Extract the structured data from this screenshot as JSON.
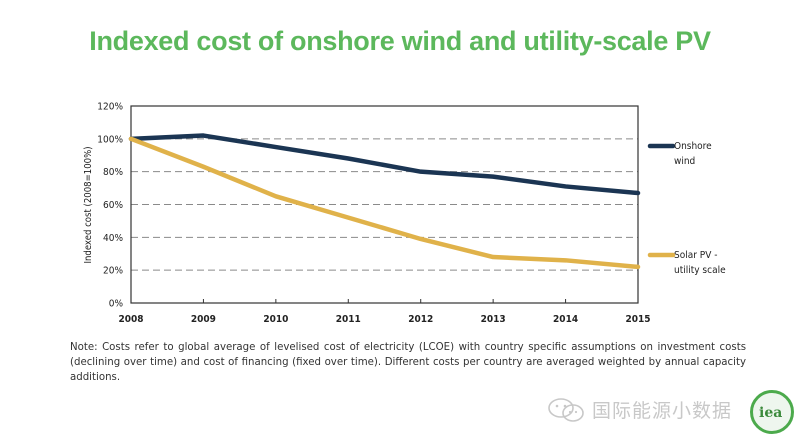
{
  "chart_data": {
    "type": "line",
    "title": "Indexed cost of onshore wind and utility-scale PV",
    "xlabel": "",
    "ylabel": "Indexed cost (2008=100%)",
    "x": [
      2008,
      2009,
      2010,
      2011,
      2012,
      2013,
      2014,
      2015
    ],
    "x_tick_labels": [
      "2008",
      "2009",
      "2010",
      "2011",
      "2012",
      "2013",
      "2014",
      "2015"
    ],
    "ylim": [
      0,
      120
    ],
    "y_ticks": [
      0,
      20,
      40,
      60,
      80,
      100,
      120
    ],
    "y_tick_labels": [
      "0%",
      "20%",
      "40%",
      "60%",
      "80%",
      "100%",
      "120%"
    ],
    "grid": "horizontal dashed",
    "legend_placement": "right",
    "series": [
      {
        "name": "Onshore wind",
        "legend_lines": [
          "Onshore",
          "wind"
        ],
        "color": "#1b3553",
        "values": [
          100,
          102,
          95,
          88,
          80,
          77,
          71,
          67
        ]
      },
      {
        "name": "Solar PV - utility scale",
        "legend_lines": [
          "Solar PV -",
          "utility scale"
        ],
        "color": "#e0b24a",
        "values": [
          100,
          83,
          65,
          52,
          39,
          28,
          26,
          22
        ]
      }
    ]
  },
  "note": "Note: Costs refer to global average of levelised cost of electricity (LCOE) with country specific assumptions on investment costs (declining over time) and cost of financing (fixed over time). Different costs per country are averaged weighted by annual capacity additions.",
  "footer": {
    "account_name": "国际能源小数据",
    "logo_text": "iea"
  },
  "colors": {
    "title": "#5cb85c",
    "wind": "#1b3553",
    "solar": "#e0b24a"
  }
}
